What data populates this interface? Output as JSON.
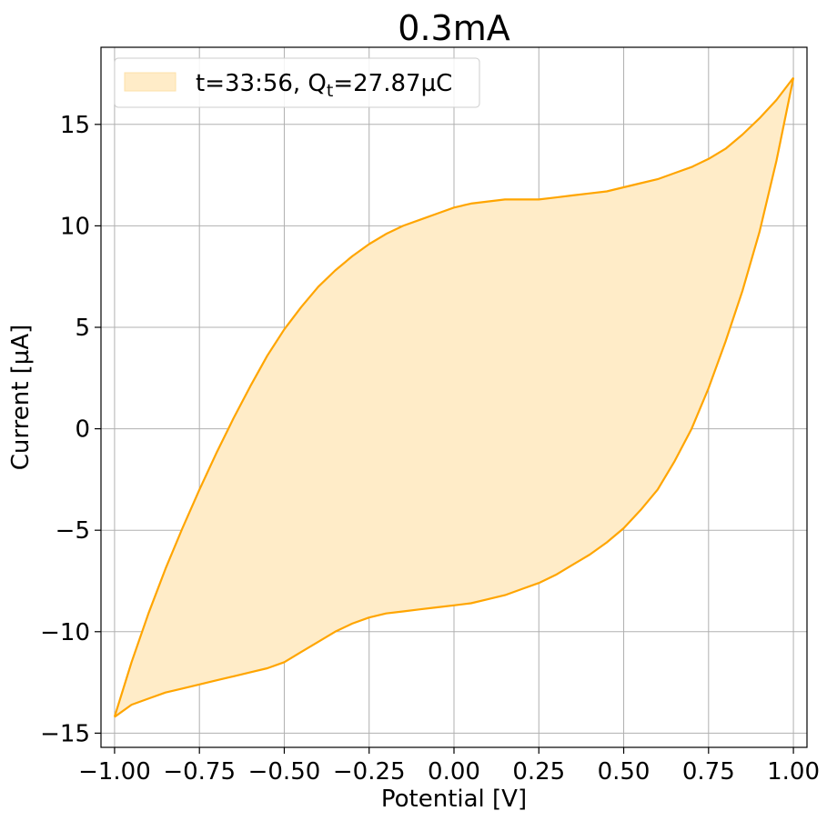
{
  "chart_data": {
    "type": "area",
    "title": "0.3mA",
    "xlabel": "Potential [V]",
    "ylabel": "Current [µA]",
    "xlim": [
      -1.04,
      1.04
    ],
    "ylim": [
      -15.7,
      18.8
    ],
    "xticks": [
      -1.0,
      -0.75,
      -0.5,
      -0.25,
      0.0,
      0.25,
      0.5,
      0.75,
      1.0
    ],
    "xtick_labels": [
      "−1.00",
      "−0.75",
      "−0.50",
      "−0.25",
      "0.00",
      "0.25",
      "0.50",
      "0.75",
      "1.00"
    ],
    "yticks": [
      -15,
      -10,
      -5,
      0,
      5,
      10,
      15
    ],
    "ytick_labels": [
      "−15",
      "−10",
      "−5",
      "0",
      "5",
      "10",
      "15"
    ],
    "grid": true,
    "legend": {
      "placement": "top-left",
      "entries": [
        {
          "text_main": "t=33:56, Q",
          "text_sub": "t",
          "text_tail": "=27.87µC"
        }
      ]
    },
    "colors": {
      "line": "#ffa500",
      "fill": "#ffecc8"
    },
    "series": [
      {
        "name": "t=33:56, Qt=27.87µC",
        "upper": {
          "x": [
            -1.0,
            -0.95,
            -0.9,
            -0.85,
            -0.8,
            -0.75,
            -0.7,
            -0.65,
            -0.6,
            -0.55,
            -0.5,
            -0.45,
            -0.4,
            -0.35,
            -0.3,
            -0.25,
            -0.2,
            -0.15,
            -0.1,
            -0.05,
            0.0,
            0.05,
            0.1,
            0.15,
            0.2,
            0.25,
            0.3,
            0.35,
            0.4,
            0.45,
            0.5,
            0.55,
            0.6,
            0.65,
            0.7,
            0.75,
            0.8,
            0.85,
            0.9,
            0.95,
            1.0
          ],
          "y": [
            -14.2,
            -11.5,
            -9.1,
            -6.9,
            -4.9,
            -3.0,
            -1.2,
            0.5,
            2.1,
            3.6,
            4.9,
            6.0,
            7.0,
            7.8,
            8.5,
            9.1,
            9.6,
            10.0,
            10.3,
            10.6,
            10.9,
            11.1,
            11.2,
            11.3,
            11.3,
            11.3,
            11.4,
            11.5,
            11.6,
            11.7,
            11.9,
            12.1,
            12.3,
            12.6,
            12.9,
            13.3,
            13.8,
            14.5,
            15.3,
            16.2,
            17.3
          ]
        },
        "lower": {
          "x": [
            -1.0,
            -0.95,
            -0.9,
            -0.85,
            -0.8,
            -0.75,
            -0.7,
            -0.65,
            -0.6,
            -0.55,
            -0.5,
            -0.45,
            -0.4,
            -0.35,
            -0.3,
            -0.25,
            -0.2,
            -0.15,
            -0.1,
            -0.05,
            0.0,
            0.05,
            0.1,
            0.15,
            0.2,
            0.25,
            0.3,
            0.35,
            0.4,
            0.45,
            0.5,
            0.55,
            0.6,
            0.65,
            0.7,
            0.75,
            0.8,
            0.85,
            0.9,
            0.95,
            1.0
          ],
          "y": [
            -14.2,
            -13.6,
            -13.3,
            -13.0,
            -12.8,
            -12.6,
            -12.4,
            -12.2,
            -12.0,
            -11.8,
            -11.5,
            -11.0,
            -10.5,
            -10.0,
            -9.6,
            -9.3,
            -9.1,
            -9.0,
            -8.9,
            -8.8,
            -8.7,
            -8.6,
            -8.4,
            -8.2,
            -7.9,
            -7.6,
            -7.2,
            -6.7,
            -6.2,
            -5.6,
            -4.9,
            -4.0,
            -3.0,
            -1.6,
            0.0,
            2.0,
            4.3,
            6.8,
            9.7,
            13.2,
            17.3
          ]
        }
      }
    ]
  }
}
